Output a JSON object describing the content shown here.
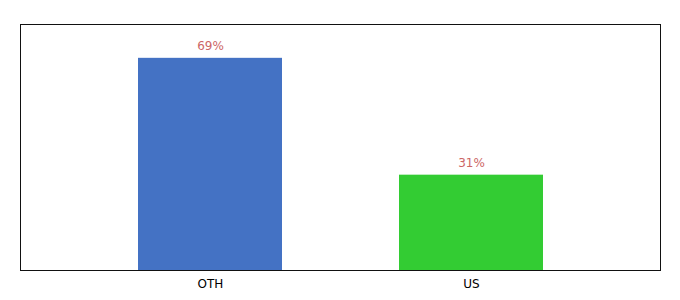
{
  "chart_data": {
    "type": "bar",
    "categories": [
      "OTH",
      "US"
    ],
    "values": [
      69,
      31
    ],
    "value_labels": [
      "69%",
      "31%"
    ],
    "colors": [
      "#4472C4",
      "#33CC33"
    ],
    "ylim": [
      0,
      80
    ],
    "yticks": [],
    "data_labels": true,
    "tick_labels": "x",
    "grid": false
  }
}
